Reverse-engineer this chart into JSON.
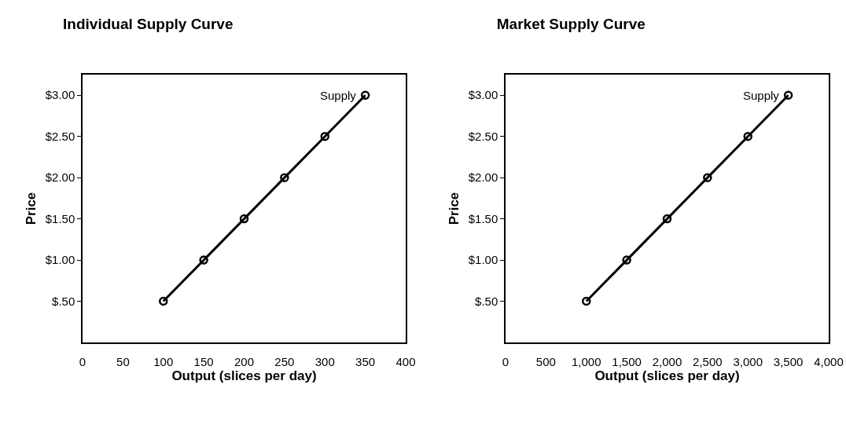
{
  "chart_data": [
    {
      "type": "line",
      "title": "Individual Supply Curve",
      "xlabel": "Output (slices per day)",
      "ylabel": "Price",
      "x": [
        100,
        150,
        200,
        250,
        300,
        350
      ],
      "series": [
        {
          "name": "Supply",
          "color": "#000000",
          "values": [
            0.5,
            1.0,
            1.5,
            2.0,
            2.5,
            3.0
          ]
        }
      ],
      "xlim": [
        0,
        400
      ],
      "xticks": [
        0,
        50,
        100,
        150,
        200,
        250,
        300,
        350,
        400
      ],
      "ylim": [
        0,
        3.25
      ],
      "yticks": [
        {
          "value": 0.5,
          "label": "$.50"
        },
        {
          "value": 1.0,
          "label": "$1.00"
        },
        {
          "value": 1.5,
          "label": "$1.50"
        },
        {
          "value": 2.0,
          "label": "$2.00"
        },
        {
          "value": 2.5,
          "label": "$2.50"
        },
        {
          "value": 3.0,
          "label": "$3.00"
        }
      ],
      "grid": false,
      "legend": false,
      "marker": "circle",
      "line_style": "solid"
    },
    {
      "type": "line",
      "title": "Market Supply Curve",
      "xlabel": "Output (slices per day)",
      "ylabel": "Price",
      "x": [
        1000,
        1500,
        2000,
        2500,
        3000,
        3500
      ],
      "series": [
        {
          "name": "Supply",
          "color": "#000000",
          "values": [
            0.5,
            1.0,
            1.5,
            2.0,
            2.5,
            3.0
          ]
        }
      ],
      "xlim": [
        0,
        4000
      ],
      "xticks": [
        {
          "value": 0,
          "label": "0"
        },
        {
          "value": 500,
          "label": "500"
        },
        {
          "value": 1000,
          "label": "1,000"
        },
        {
          "value": 1500,
          "label": "1,500"
        },
        {
          "value": 2000,
          "label": "2,000"
        },
        {
          "value": 2500,
          "label": "2,500"
        },
        {
          "value": 3000,
          "label": "3,000"
        },
        {
          "value": 3500,
          "label": "3,500"
        },
        {
          "value": 4000,
          "label": "4,000"
        }
      ],
      "ylim": [
        0,
        3.25
      ],
      "yticks": [
        {
          "value": 0.5,
          "label": "$.50"
        },
        {
          "value": 1.0,
          "label": "$1.00"
        },
        {
          "value": 1.5,
          "label": "$1.50"
        },
        {
          "value": 2.0,
          "label": "$2.00"
        },
        {
          "value": 2.5,
          "label": "$2.50"
        },
        {
          "value": 3.0,
          "label": "$3.00"
        }
      ],
      "grid": false,
      "legend": false,
      "marker": "circle",
      "line_style": "solid"
    }
  ]
}
